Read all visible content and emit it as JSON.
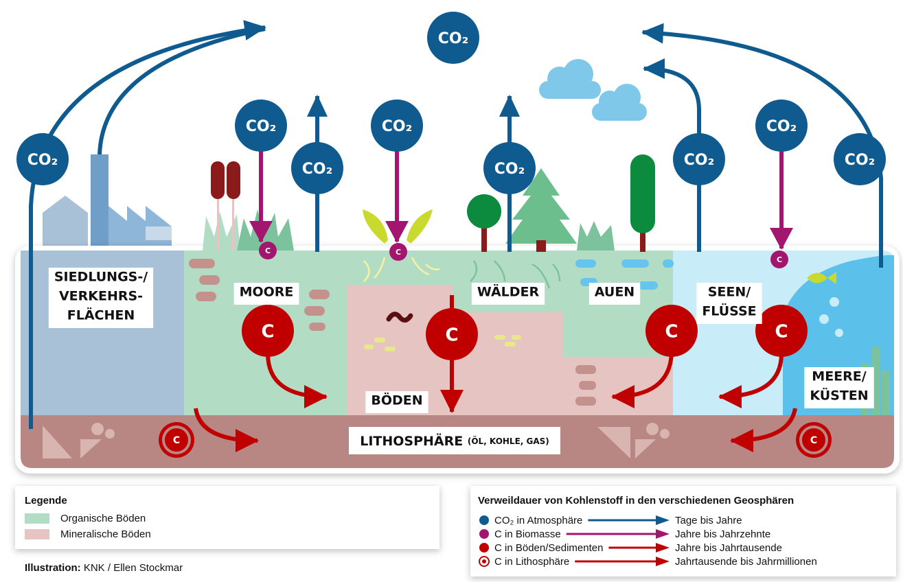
{
  "atmosphere": {
    "co2": "CO₂"
  },
  "carbon": {
    "symbol": "C"
  },
  "zones": [
    {
      "name": [
        "SIEDLUNGS-/",
        "VERKEHRS-",
        "FLÄCHEN"
      ]
    },
    {
      "name": [
        "MOORE"
      ]
    },
    {
      "name": [
        "BÖDEN"
      ]
    },
    {
      "name": [
        "WÄLDER"
      ]
    },
    {
      "name": [
        "AUEN"
      ]
    },
    {
      "name": [
        "SEEN/",
        "FLÜSSE"
      ]
    },
    {
      "name": [
        "MEERE/",
        "KÜSTEN"
      ]
    }
  ],
  "lithosphere": {
    "name": "LITHOSPHÄRE",
    "note": "(ÖL, KOHLE, GAS)"
  },
  "legend": {
    "title": "Legende",
    "items": [
      "Organische Böden",
      "Mineralische Böden"
    ]
  },
  "residence": {
    "title": "Verweildauer von Kohlenstoff in den verschiedenen Geosphären",
    "rows": [
      {
        "label": "CO₂ in Atmosphäre",
        "duration": "Tage bis Jahre"
      },
      {
        "label": "C in Biomasse",
        "duration": "Jahre bis Jahrzehnte"
      },
      {
        "label": "C in Böden/Sedimenten",
        "duration": "Jahre bis Jahrtausende"
      },
      {
        "label": "C in Lithosphäre",
        "duration": "Jahrtausende bis Jahrmillionen"
      }
    ]
  },
  "credit": {
    "label": "Illustration:",
    "text": "KNK / Ellen Stockmar"
  }
}
